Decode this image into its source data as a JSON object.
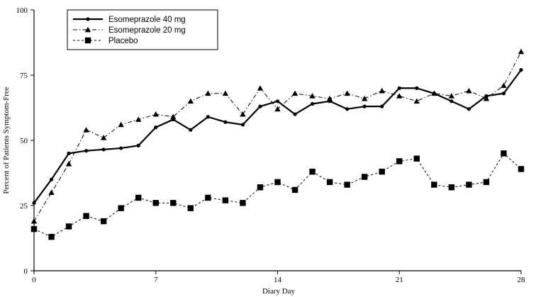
{
  "chart_data": {
    "type": "line",
    "xlabel": "Diary Day",
    "ylabel": "Percent of Patients Symptom-Free",
    "xlim": [
      0,
      28
    ],
    "ylim": [
      0,
      100
    ],
    "xticks": [
      0,
      7,
      14,
      21,
      28
    ],
    "yticks": [
      0,
      25,
      50,
      75,
      100
    ],
    "grid": false,
    "legend_position": "top-left",
    "series": [
      {
        "name": "Esomeprazole 40 mg",
        "marker": "circle",
        "line_style": "solid-thick",
        "color": "#000000",
        "x": [
          0,
          1,
          2,
          3,
          4,
          5,
          6,
          7,
          8,
          9,
          10,
          11,
          12,
          13,
          14,
          15,
          16,
          17,
          18,
          19,
          20,
          21,
          22,
          23,
          24,
          25,
          26,
          27,
          28
        ],
        "values": [
          26,
          35,
          45,
          46,
          46.5,
          47,
          48,
          55,
          58,
          54,
          59,
          57,
          56,
          63,
          65,
          60,
          64,
          65,
          62,
          63,
          63,
          70,
          70,
          68,
          65,
          62,
          67,
          68,
          77
        ]
      },
      {
        "name": "Esomeprazole 20 mg",
        "marker": "triangle",
        "line_style": "dash-dot",
        "color": "#000000",
        "x": [
          0,
          1,
          2,
          3,
          4,
          5,
          6,
          7,
          8,
          9,
          10,
          11,
          12,
          13,
          14,
          15,
          16,
          17,
          18,
          19,
          20,
          21,
          22,
          23,
          24,
          25,
          26,
          27,
          28
        ],
        "values": [
          19,
          30,
          41,
          54,
          51,
          56,
          58,
          60,
          59,
          65,
          68,
          68,
          60,
          70,
          62,
          68,
          67,
          66,
          68,
          66,
          69,
          67,
          65,
          68,
          67,
          69,
          66,
          71,
          84
        ]
      },
      {
        "name": "Placebo",
        "marker": "square",
        "line_style": "dotted",
        "color": "#000000",
        "x": [
          0,
          1,
          2,
          3,
          4,
          5,
          6,
          7,
          8,
          9,
          10,
          11,
          12,
          13,
          14,
          15,
          16,
          17,
          18,
          19,
          20,
          21,
          22,
          23,
          24,
          25,
          26,
          27,
          28
        ],
        "values": [
          16,
          13,
          17,
          21,
          19,
          24,
          28,
          26,
          26,
          24,
          28,
          27,
          26,
          32,
          34,
          31,
          38,
          34,
          33,
          36,
          38,
          42,
          43,
          33,
          32,
          33,
          34,
          45,
          39
        ]
      }
    ]
  }
}
